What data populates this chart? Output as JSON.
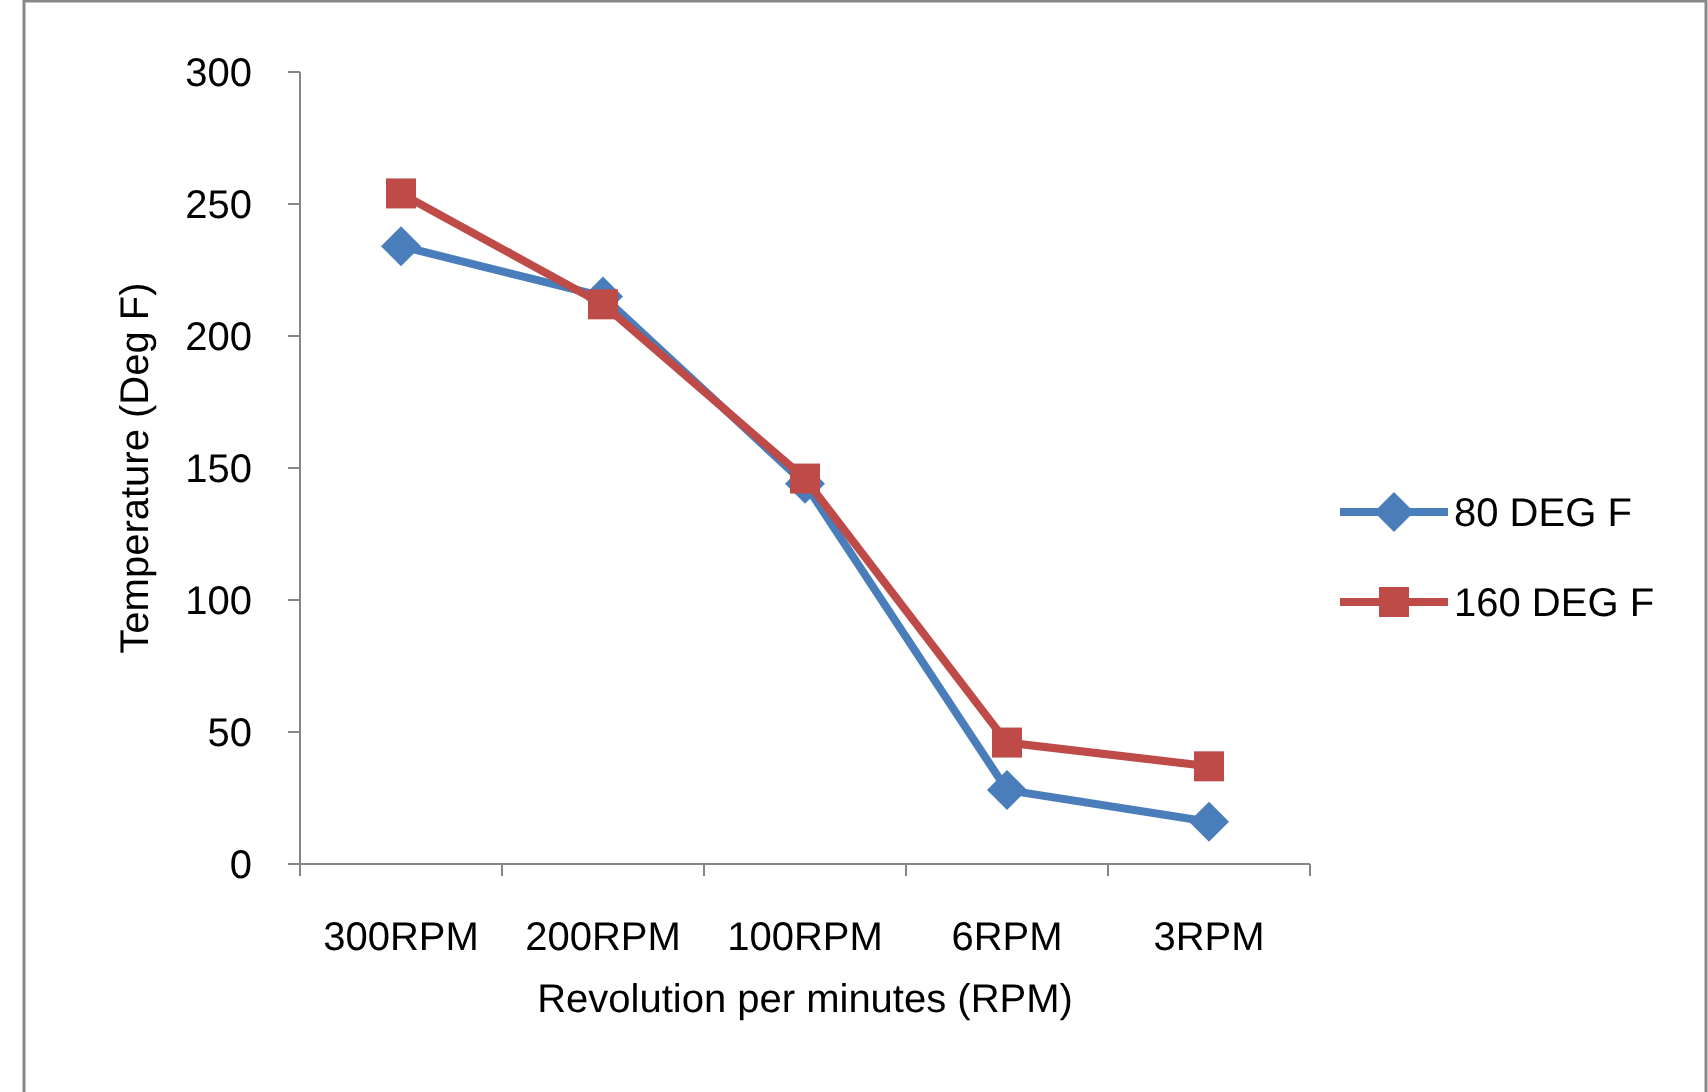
{
  "chart_data": {
    "type": "line",
    "xlabel": "Revolution per minutes (RPM)",
    "ylabel": "Temperature (Deg F)",
    "categories": [
      "300RPM",
      "200RPM",
      "100RPM",
      "6RPM",
      "3RPM"
    ],
    "series": [
      {
        "name": "80 DEG F",
        "color": "#4a7ebb",
        "marker": "diamond",
        "values": [
          234,
          215,
          144,
          28,
          16
        ]
      },
      {
        "name": "160 DEG F",
        "color": "#be4b48",
        "marker": "square",
        "values": [
          254,
          212,
          146,
          46,
          37
        ]
      }
    ],
    "ylim": [
      0,
      300
    ],
    "yticks": [
      0,
      50,
      100,
      150,
      200,
      250,
      300
    ],
    "grid": false,
    "legend": "right",
    "line_style": "solid"
  }
}
